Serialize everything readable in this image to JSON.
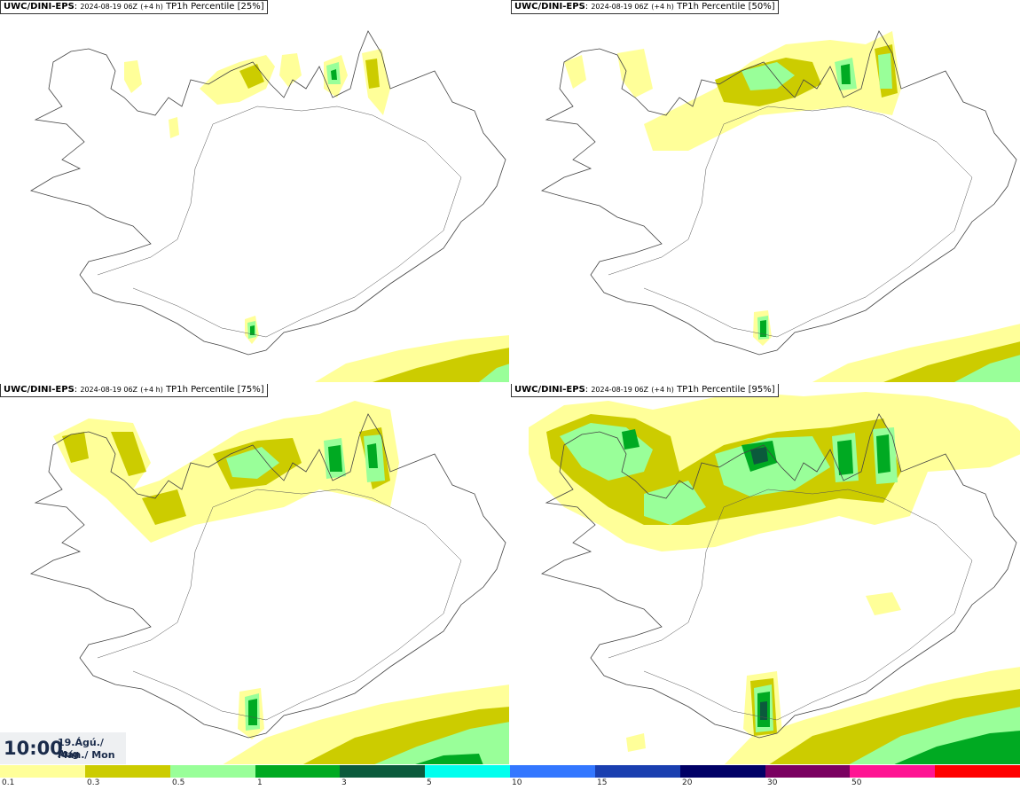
{
  "panels": [
    {
      "model": "UWC/DINI-EPS",
      "run": "2024-08-19 06Z",
      "lead": "(+4 h)",
      "field": "TP1h Percentile [25%]"
    },
    {
      "model": "UWC/DINI-EPS",
      "run": "2024-08-19 06Z",
      "lead": "(+4 h)",
      "field": "TP1h Percentile [50%]"
    },
    {
      "model": "UWC/DINI-EPS",
      "run": "2024-08-19 06Z",
      "lead": "(+4 h)",
      "field": "TP1h Percentile [75%]"
    },
    {
      "model": "UWC/DINI-EPS",
      "run": "2024-08-19 06Z",
      "lead": "(+4 h)",
      "field": "TP1h Percentile [95%]"
    }
  ],
  "clock": {
    "time": "10:00",
    "date_line": "19.Ágú./ Aug",
    "day_line": "Mán./ Mon"
  },
  "legend": {
    "ticks": [
      "0.1",
      "0.3",
      "0.5",
      "1",
      "3",
      "5",
      "10",
      "15",
      "20",
      "30",
      "50"
    ],
    "colors": [
      "#ffff99",
      "#cccc00",
      "#99ff99",
      "#00aa22",
      "#0b5a3c",
      "#00ffee",
      "#3377ff",
      "#1a3fb0",
      "#000066",
      "#7a0060",
      "#ff1493",
      "#ff0000"
    ]
  },
  "colors": {
    "lightest": "#ffff99",
    "light": "#cccc00",
    "mid": "#99ff99",
    "dark": "#00aa22",
    "darkest": "#0b5a3c"
  }
}
